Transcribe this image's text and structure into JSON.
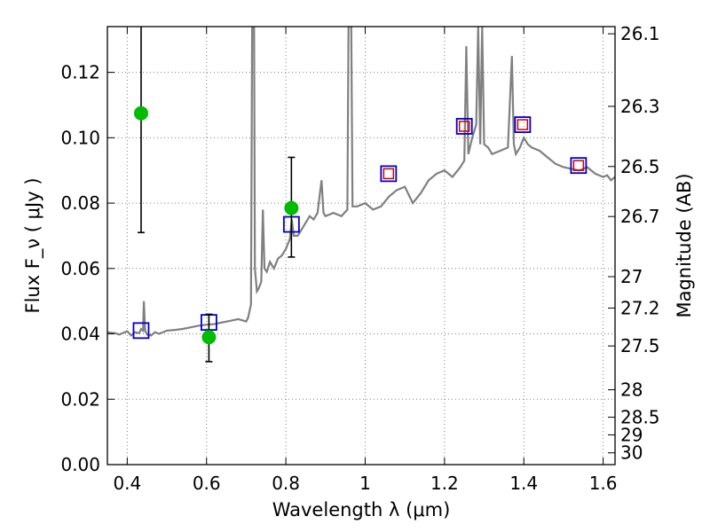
{
  "chart_data": {
    "type": "scatter",
    "title": "",
    "xlabel": "Wavelength  λ (μm)",
    "ylabel": "Flux  F_ν  ( μJy )",
    "ylabel_right": "Magnitude (AB)",
    "xlim": [
      0.35,
      1.63
    ],
    "ylim": [
      0.0,
      0.134
    ],
    "grid": true,
    "x_ticks": [
      0.4,
      0.6,
      0.8,
      1.0,
      1.2,
      1.4,
      1.6
    ],
    "x_tick_labels": [
      "0.4",
      "0.6",
      "0.8",
      "1",
      "1.2",
      "1.4",
      "1.6"
    ],
    "y_ticks": [
      0.0,
      0.02,
      0.04,
      0.06,
      0.08,
      0.1,
      0.12
    ],
    "y_tick_labels": [
      "0.00",
      "0.02",
      "0.04",
      "0.06",
      "0.08",
      "0.10",
      "0.12"
    ],
    "right_ticks": [
      {
        "label": "26.1",
        "flux": 0.1318
      },
      {
        "label": "26.3",
        "flux": 0.1096
      },
      {
        "label": "26.5",
        "flux": 0.0912
      },
      {
        "label": "26.7",
        "flux": 0.0759
      },
      {
        "label": "27",
        "flux": 0.0575
      },
      {
        "label": "27.2",
        "flux": 0.0479
      },
      {
        "label": "27.5",
        "flux": 0.0363
      },
      {
        "label": "28",
        "flux": 0.0229
      },
      {
        "label": "28.5",
        "flux": 0.0145
      },
      {
        "label": "29",
        "flux": 0.0091
      },
      {
        "label": "30",
        "flux": 0.0036
      }
    ],
    "colors": {
      "spectrum": "#808080",
      "observed": "#00bb00",
      "model_blue": "#0000cc",
      "model_red": "#cc0000",
      "errorbar": "#000000",
      "grid": "#808080"
    },
    "series": [
      {
        "kind": "spectrum",
        "points": [
          [
            0.35,
            0.0405
          ],
          [
            0.37,
            0.0402
          ],
          [
            0.38,
            0.0398
          ],
          [
            0.4,
            0.0408
          ],
          [
            0.41,
            0.0395
          ],
          [
            0.42,
            0.0405
          ],
          [
            0.43,
            0.0402
          ],
          [
            0.435,
            0.0415
          ],
          [
            0.44,
            0.041
          ],
          [
            0.442,
            0.05
          ],
          [
            0.445,
            0.041
          ],
          [
            0.45,
            0.0398
          ],
          [
            0.46,
            0.0395
          ],
          [
            0.47,
            0.0405
          ],
          [
            0.48,
            0.04
          ],
          [
            0.5,
            0.041
          ],
          [
            0.52,
            0.0412
          ],
          [
            0.54,
            0.0415
          ],
          [
            0.56,
            0.042
          ],
          [
            0.58,
            0.0425
          ],
          [
            0.6,
            0.0428
          ],
          [
            0.62,
            0.043
          ],
          [
            0.64,
            0.0435
          ],
          [
            0.66,
            0.044
          ],
          [
            0.68,
            0.0445
          ],
          [
            0.7,
            0.0438
          ],
          [
            0.705,
            0.045
          ],
          [
            0.712,
            0.049
          ],
          [
            0.715,
            0.134
          ],
          [
            0.72,
            0.134
          ],
          [
            0.722,
            0.06
          ],
          [
            0.727,
            0.053
          ],
          [
            0.732,
            0.054
          ],
          [
            0.738,
            0.056
          ],
          [
            0.742,
            0.078
          ],
          [
            0.746,
            0.06
          ],
          [
            0.752,
            0.059
          ],
          [
            0.76,
            0.062
          ],
          [
            0.77,
            0.06
          ],
          [
            0.78,
            0.063
          ],
          [
            0.79,
            0.064
          ],
          [
            0.8,
            0.066
          ],
          [
            0.81,
            0.069
          ],
          [
            0.815,
            0.075
          ],
          [
            0.82,
            0.07
          ],
          [
            0.83,
            0.07
          ],
          [
            0.84,
            0.072
          ],
          [
            0.85,
            0.074
          ],
          [
            0.86,
            0.076
          ],
          [
            0.87,
            0.075
          ],
          [
            0.88,
            0.077
          ],
          [
            0.89,
            0.087
          ],
          [
            0.895,
            0.077
          ],
          [
            0.9,
            0.076
          ],
          [
            0.92,
            0.077
          ],
          [
            0.94,
            0.076
          ],
          [
            0.955,
            0.078
          ],
          [
            0.958,
            0.134
          ],
          [
            0.965,
            0.134
          ],
          [
            0.968,
            0.079
          ],
          [
            0.98,
            0.079
          ],
          [
            1.0,
            0.08
          ],
          [
            1.02,
            0.078
          ],
          [
            1.04,
            0.079
          ],
          [
            1.06,
            0.082
          ],
          [
            1.08,
            0.084
          ],
          [
            1.1,
            0.085
          ],
          [
            1.12,
            0.08
          ],
          [
            1.14,
            0.083
          ],
          [
            1.16,
            0.087
          ],
          [
            1.18,
            0.089
          ],
          [
            1.2,
            0.09
          ],
          [
            1.22,
            0.088
          ],
          [
            1.24,
            0.091
          ],
          [
            1.25,
            0.093
          ],
          [
            1.255,
            0.128
          ],
          [
            1.26,
            0.095
          ],
          [
            1.27,
            0.1
          ],
          [
            1.28,
            0.104
          ],
          [
            1.285,
            0.134
          ],
          [
            1.29,
            0.098
          ],
          [
            1.295,
            0.134
          ],
          [
            1.3,
            0.098
          ],
          [
            1.31,
            0.097
          ],
          [
            1.32,
            0.095
          ],
          [
            1.34,
            0.096
          ],
          [
            1.36,
            0.097
          ],
          [
            1.37,
            0.125
          ],
          [
            1.375,
            0.098
          ],
          [
            1.38,
            0.095
          ],
          [
            1.39,
            0.097
          ],
          [
            1.4,
            0.1
          ],
          [
            1.41,
            0.098
          ],
          [
            1.42,
            0.097
          ],
          [
            1.44,
            0.096
          ],
          [
            1.46,
            0.094
          ],
          [
            1.48,
            0.092
          ],
          [
            1.5,
            0.091
          ],
          [
            1.52,
            0.0905
          ],
          [
            1.54,
            0.09
          ],
          [
            1.56,
            0.091
          ],
          [
            1.58,
            0.089
          ],
          [
            1.6,
            0.088
          ],
          [
            1.61,
            0.0885
          ],
          [
            1.62,
            0.087
          ],
          [
            1.63,
            0.088
          ]
        ]
      },
      {
        "kind": "observed",
        "points": [
          {
            "x": 0.435,
            "y": 0.1075,
            "ylo": 0.071,
            "yhi": 0.134
          },
          {
            "x": 0.606,
            "y": 0.039,
            "ylo": 0.0315,
            "yhi": 0.046
          },
          {
            "x": 0.814,
            "y": 0.0785,
            "ylo": 0.0635,
            "yhi": 0.094
          }
        ]
      },
      {
        "kind": "model_blue",
        "points": [
          {
            "x": 0.435,
            "y": 0.041
          },
          {
            "x": 0.606,
            "y": 0.0435
          },
          {
            "x": 0.814,
            "y": 0.0735
          },
          {
            "x": 1.059,
            "y": 0.089
          },
          {
            "x": 1.25,
            "y": 0.1035
          },
          {
            "x": 1.397,
            "y": 0.104
          },
          {
            "x": 1.538,
            "y": 0.0915
          }
        ]
      },
      {
        "kind": "model_red",
        "points": [
          {
            "x": 1.059,
            "y": 0.089
          },
          {
            "x": 1.25,
            "y": 0.1035
          },
          {
            "x": 1.397,
            "y": 0.104
          },
          {
            "x": 1.538,
            "y": 0.0915
          }
        ]
      }
    ]
  }
}
